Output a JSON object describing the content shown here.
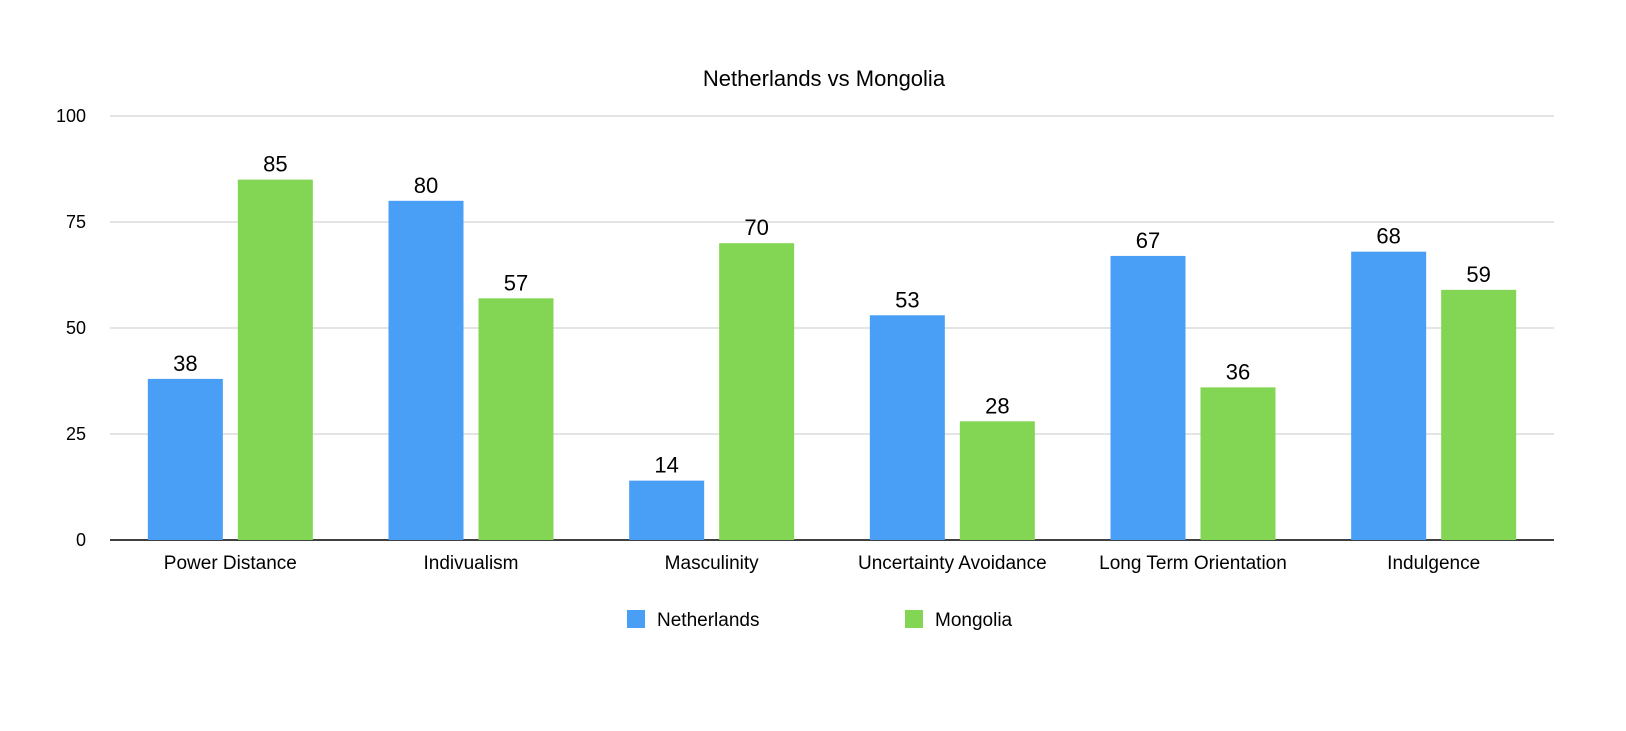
{
  "chart_data": {
    "type": "bar",
    "title": "Netherlands vs Mongolia",
    "xlabel": "",
    "ylabel": "",
    "categories": [
      "Power Distance",
      "Indivualism",
      "Masculinity",
      "Uncertainty Avoidance",
      "Long Term Orientation",
      "Indulgence"
    ],
    "series": [
      {
        "name": "Netherlands",
        "color": "#489ff5",
        "values": [
          38,
          80,
          14,
          53,
          67,
          68
        ]
      },
      {
        "name": "Mongolia",
        "color": "#83d554",
        "values": [
          85,
          57,
          70,
          28,
          36,
          59
        ]
      }
    ],
    "ylim": [
      0,
      100
    ],
    "yticks": [
      "0",
      "25",
      "50",
      "75",
      "100"
    ],
    "grid": true,
    "legend": "bottom-center",
    "data_labels": true
  }
}
